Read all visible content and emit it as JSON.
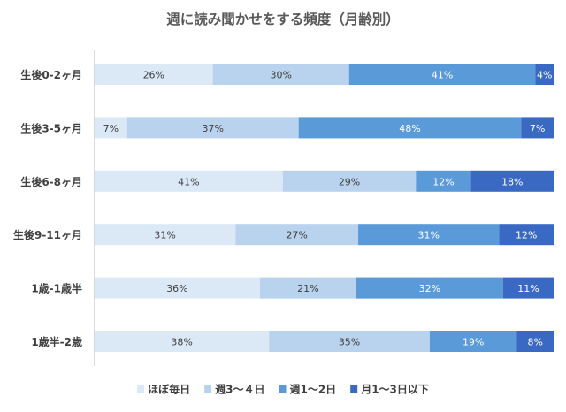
{
  "chart_data": {
    "type": "bar",
    "orientation": "horizontal",
    "stacked": true,
    "title": "週に読み聞かせをする頻度（月齢別）",
    "categories": [
      "生後0-2ヶ月",
      "生後3-5ヶ月",
      "生後6-8ヶ月",
      "生後9-11ヶ月",
      "1歳-1歳半",
      "1歳半-2歳"
    ],
    "series": [
      {
        "name": "ほぼ毎日",
        "color": "#dbe8f6",
        "values": [
          26,
          7,
          41,
          31,
          36,
          38
        ],
        "labels": [
          "26%",
          "7%",
          "41%",
          "31%",
          "36%",
          "38%"
        ]
      },
      {
        "name": "週3～４日",
        "color": "#b9d3ee",
        "values": [
          30,
          37,
          29,
          27,
          21,
          35
        ],
        "labels": [
          "30%",
          "37%",
          "29%",
          "27%",
          "21%",
          "35%"
        ]
      },
      {
        "name": "週1～2日",
        "color": "#5a9ad8",
        "values": [
          41,
          48,
          12,
          31,
          32,
          19
        ],
        "labels": [
          "41%",
          "48%",
          "12%",
          "31%",
          "32%",
          "19%"
        ]
      },
      {
        "name": "月1～3日以下",
        "color": "#3a69c4",
        "values": [
          4,
          7,
          18,
          12,
          11,
          8
        ],
        "labels": [
          "4%",
          "7%",
          "18%",
          "12%",
          "11%",
          "8%"
        ]
      }
    ],
    "legend_position": "bottom",
    "grid": false
  }
}
